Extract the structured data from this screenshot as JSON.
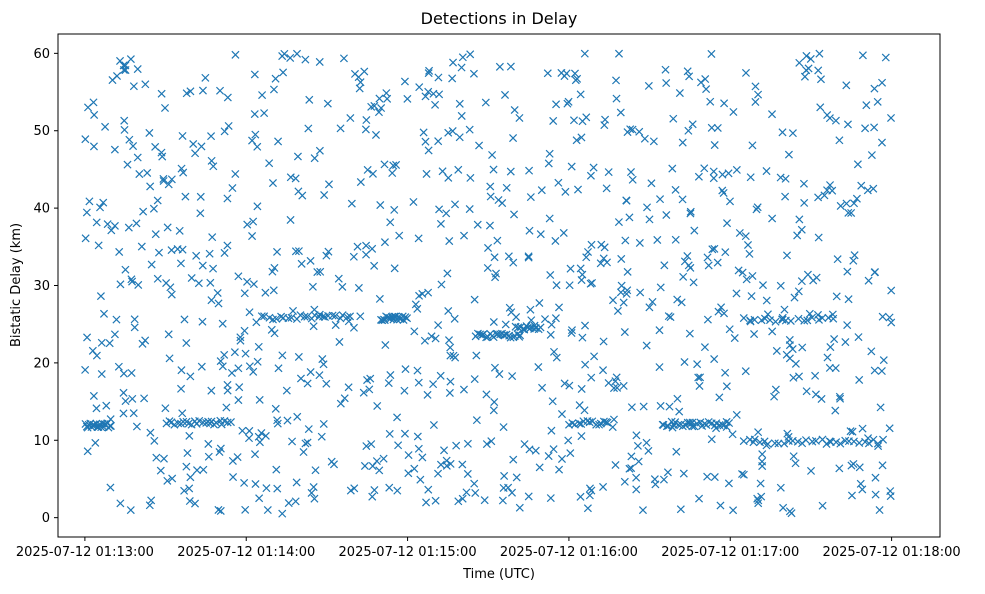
{
  "chart_data": {
    "type": "scatter",
    "title": "Detections in Delay",
    "xlabel": "Time (UTC)",
    "ylabel": "Bistatic Delay (km)",
    "marker": "x",
    "color": "#1f77b4",
    "grid": false,
    "x_ticks": [
      "2025-07-12 01:13:00",
      "2025-07-12 01:14:00",
      "2025-07-12 01:15:00",
      "2025-07-12 01:16:00",
      "2025-07-12 01:17:00",
      "2025-07-12 01:18:00"
    ],
    "y_ticks": [
      0,
      10,
      20,
      30,
      40,
      50,
      60
    ],
    "xlim": [
      "2025-07-12 01:12:50",
      "2025-07-12 01:18:18"
    ],
    "ylim": [
      -2.5,
      62.5
    ],
    "x_range": [
      "2025-07-12 01:13:00",
      "2025-07-12 01:18:00"
    ],
    "y_range": [
      0.5,
      60
    ],
    "scatter_count": 1000,
    "clusters": [
      {
        "x_start": "2025-07-12 01:13:00",
        "x_end": "2025-07-12 01:13:10",
        "y": 11.9,
        "count": 22
      },
      {
        "x_start": "2025-07-12 01:13:30",
        "x_end": "2025-07-12 01:13:55",
        "y": 12.3,
        "count": 24
      },
      {
        "x_start": "2025-07-12 01:14:05",
        "x_end": "2025-07-12 01:14:40",
        "y": 25.9,
        "count": 24
      },
      {
        "x_start": "2025-07-12 01:14:50",
        "x_end": "2025-07-12 01:15:00",
        "y": 25.8,
        "count": 20
      },
      {
        "x_start": "2025-07-12 01:15:25",
        "x_end": "2025-07-12 01:15:42",
        "y": 23.5,
        "count": 22
      },
      {
        "x_start": "2025-07-12 01:15:40",
        "x_end": "2025-07-12 01:15:50",
        "y": 24.5,
        "count": 12
      },
      {
        "x_start": "2025-07-12 01:16:00",
        "x_end": "2025-07-12 01:16:15",
        "y": 12.2,
        "count": 14
      },
      {
        "x_start": "2025-07-12 01:16:35",
        "x_end": "2025-07-12 01:17:00",
        "y": 12.1,
        "count": 28
      },
      {
        "x_start": "2025-07-12 01:17:05",
        "x_end": "2025-07-12 01:17:40",
        "y": 25.6,
        "count": 18
      },
      {
        "x_start": "2025-07-12 01:17:05",
        "x_end": "2025-07-12 01:17:58",
        "y": 9.8,
        "count": 30
      }
    ]
  }
}
